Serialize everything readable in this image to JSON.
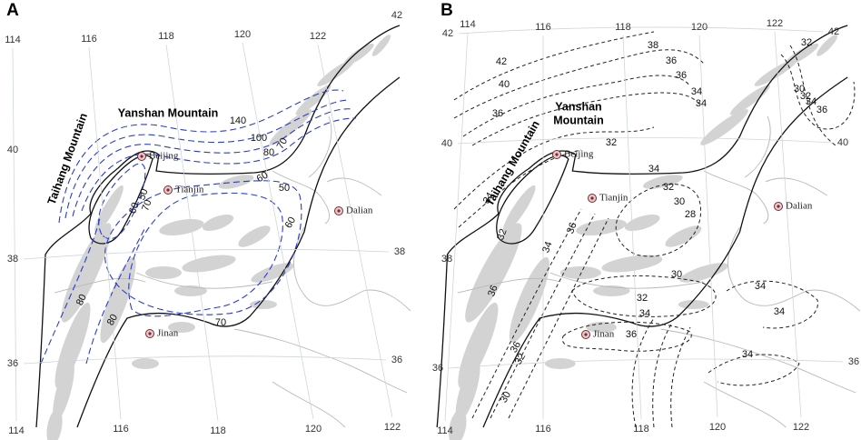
{
  "panels": [
    {
      "label": "A",
      "lon_top": [
        114,
        116,
        118,
        120,
        122
      ],
      "lon_bottom": [
        114,
        116,
        118,
        120,
        122
      ],
      "lat_left": [
        40,
        38,
        36
      ],
      "lat_right": [
        42,
        38,
        36
      ],
      "mountains": [
        "Yanshan Mountain",
        "Taihang Mountain"
      ],
      "places": [
        "Beijing",
        "Tianjin",
        "Dalian",
        "Jinan"
      ],
      "contours": [
        140,
        100,
        80,
        70,
        60,
        50,
        50,
        60,
        70,
        60,
        80,
        80,
        70
      ]
    },
    {
      "label": "B",
      "lon_top": [
        114,
        116,
        118,
        120,
        122
      ],
      "lon_bottom": [
        114,
        116,
        118,
        120,
        122
      ],
      "lat_left": [
        42,
        40,
        38,
        36
      ],
      "lat_right": [
        42,
        40,
        36
      ],
      "mountains": [
        "Yanshan",
        "Mountain",
        "Taihang Mountain"
      ],
      "places": [
        "Beijing",
        "Tianjin",
        "Dalian",
        "Jinan"
      ],
      "contours": [
        42,
        40,
        38,
        36,
        36,
        34,
        34,
        36,
        32,
        32,
        30,
        32,
        34,
        36,
        34,
        32,
        30,
        28,
        34,
        32,
        36,
        34,
        36,
        30,
        32,
        34,
        34,
        34,
        36,
        36,
        32,
        30,
        34
      ]
    }
  ]
}
